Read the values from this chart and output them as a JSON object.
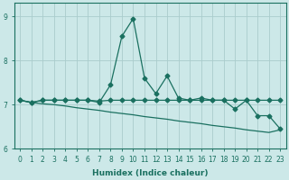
{
  "title": "",
  "xlabel": "Humidex (Indice chaleur)",
  "ylabel": "",
  "bg_color": "#cce8e8",
  "grid_color": "#aacccc",
  "line_color": "#1a7060",
  "ylim": [
    6.0,
    9.3
  ],
  "xlim": [
    -0.5,
    23.5
  ],
  "yticks": [
    6,
    7,
    8,
    9
  ],
  "xticks": [
    0,
    1,
    2,
    3,
    4,
    5,
    6,
    7,
    8,
    9,
    10,
    11,
    12,
    13,
    14,
    15,
    16,
    17,
    18,
    19,
    20,
    21,
    22,
    23
  ],
  "line1_x": [
    0,
    1,
    2,
    3,
    4,
    5,
    6,
    7,
    8,
    9,
    10,
    11,
    12,
    13,
    14,
    15,
    16,
    17,
    18,
    19,
    20,
    21,
    22,
    23
  ],
  "line1_y": [
    7.1,
    7.05,
    7.1,
    7.1,
    7.1,
    7.1,
    7.1,
    7.05,
    7.45,
    8.55,
    8.95,
    7.6,
    7.25,
    7.65,
    7.15,
    7.1,
    7.15,
    7.1,
    7.1,
    6.9,
    7.1,
    6.75,
    6.75,
    6.45
  ],
  "line2_x": [
    0,
    1,
    2,
    3,
    4,
    5,
    6,
    7,
    8,
    9,
    10,
    11,
    12,
    13,
    14,
    15,
    16,
    17,
    18,
    19,
    20,
    21,
    22,
    23
  ],
  "line2_y": [
    7.1,
    7.05,
    7.1,
    7.1,
    7.1,
    7.1,
    7.1,
    7.08,
    7.1,
    7.1,
    7.1,
    7.1,
    7.1,
    7.1,
    7.1,
    7.1,
    7.1,
    7.1,
    7.1,
    7.1,
    7.1,
    7.1,
    7.1,
    7.1
  ],
  "line3_x": [
    0,
    1,
    2,
    3,
    4,
    5,
    6,
    7,
    8,
    9,
    10,
    11,
    12,
    13,
    14,
    15,
    16,
    17,
    18,
    19,
    20,
    21,
    22,
    23
  ],
  "line3_y": [
    7.1,
    7.05,
    7.02,
    7.0,
    6.97,
    6.93,
    6.9,
    6.87,
    6.83,
    6.8,
    6.77,
    6.73,
    6.7,
    6.67,
    6.63,
    6.6,
    6.57,
    6.53,
    6.5,
    6.47,
    6.43,
    6.4,
    6.37,
    6.43
  ]
}
